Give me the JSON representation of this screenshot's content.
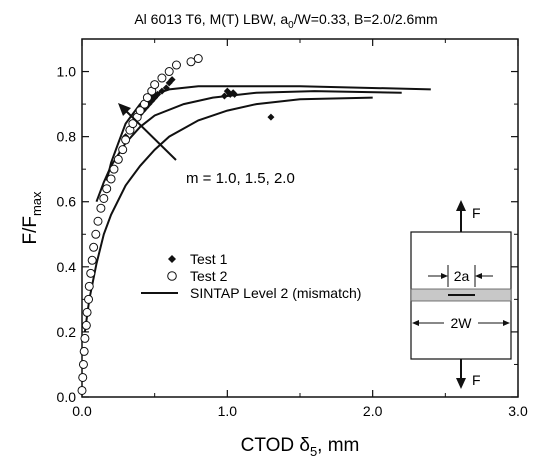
{
  "chart_data": {
    "type": "scatter",
    "title": {
      "pre": "Al 6013 T6, M(T) LBW, a",
      "sub1": "0",
      "mid": "/W=0.33, B=2.0/2.6mm"
    },
    "xlabel": {
      "main": "CTOD δ",
      "sub": "5",
      "suffix": ", mm"
    },
    "ylabel": {
      "main": "F/F",
      "sub": "max"
    },
    "xlim": [
      0,
      3
    ],
    "ylim": [
      0,
      1.1
    ],
    "x_ticks": [
      "0.0",
      "1.0",
      "2.0",
      "3.0"
    ],
    "y_ticks": [
      "0.0",
      "0.2",
      "0.4",
      "0.6",
      "0.8",
      "1.0"
    ],
    "annotation": "m = 1.0, 1.5, 2.0",
    "legend": {
      "test1": "Test 1",
      "test2": "Test 2",
      "sintap": "SINTAP Level 2 (mismatch)"
    },
    "inset": {
      "crack": "2a",
      "width": "2W",
      "force": "F"
    },
    "series": [
      {
        "name": "Test 1",
        "marker": "filled-diamond",
        "points": [
          [
            0.3,
            0.8
          ],
          [
            0.32,
            0.82
          ],
          [
            0.35,
            0.84
          ],
          [
            0.38,
            0.86
          ],
          [
            0.4,
            0.87
          ],
          [
            0.42,
            0.88
          ],
          [
            0.44,
            0.89
          ],
          [
            0.46,
            0.9
          ],
          [
            0.48,
            0.91
          ],
          [
            0.5,
            0.92
          ],
          [
            0.52,
            0.93
          ],
          [
            0.55,
            0.94
          ],
          [
            0.58,
            0.95
          ],
          [
            0.6,
            0.965
          ],
          [
            0.62,
            0.975
          ],
          [
            0.98,
            0.925
          ],
          [
            1.0,
            0.94
          ],
          [
            1.01,
            0.935
          ],
          [
            1.02,
            0.93
          ],
          [
            1.04,
            0.935
          ],
          [
            1.05,
            0.93
          ],
          [
            1.3,
            0.86
          ]
        ]
      },
      {
        "name": "Test 2",
        "marker": "open-circle",
        "points": [
          [
            0.0,
            0.02
          ],
          [
            0.005,
            0.06
          ],
          [
            0.01,
            0.1
          ],
          [
            0.015,
            0.14
          ],
          [
            0.02,
            0.18
          ],
          [
            0.03,
            0.22
          ],
          [
            0.035,
            0.26
          ],
          [
            0.045,
            0.3
          ],
          [
            0.05,
            0.34
          ],
          [
            0.06,
            0.38
          ],
          [
            0.07,
            0.42
          ],
          [
            0.08,
            0.46
          ],
          [
            0.095,
            0.5
          ],
          [
            0.11,
            0.54
          ],
          [
            0.13,
            0.58
          ],
          [
            0.15,
            0.61
          ],
          [
            0.17,
            0.64
          ],
          [
            0.2,
            0.67
          ],
          [
            0.22,
            0.7
          ],
          [
            0.25,
            0.73
          ],
          [
            0.28,
            0.76
          ],
          [
            0.3,
            0.79
          ],
          [
            0.33,
            0.82
          ],
          [
            0.35,
            0.84
          ],
          [
            0.38,
            0.86
          ],
          [
            0.4,
            0.88
          ],
          [
            0.43,
            0.9
          ],
          [
            0.45,
            0.92
          ],
          [
            0.48,
            0.94
          ],
          [
            0.5,
            0.96
          ],
          [
            0.55,
            0.98
          ],
          [
            0.6,
            1.0
          ],
          [
            0.65,
            1.02
          ],
          [
            0.75,
            1.03
          ],
          [
            0.8,
            1.04
          ]
        ]
      }
    ],
    "curves": [
      {
        "name": "SINTAP Level 2 (mismatch), m = 1.0",
        "points": [
          [
            0.17,
            0.665
          ],
          [
            0.2,
            0.72
          ],
          [
            0.25,
            0.78
          ],
          [
            0.3,
            0.84
          ],
          [
            0.4,
            0.9
          ],
          [
            0.5,
            0.93
          ],
          [
            0.6,
            0.945
          ],
          [
            0.8,
            0.955
          ],
          [
            1.0,
            0.955
          ],
          [
            1.5,
            0.955
          ],
          [
            2.4,
            0.945
          ]
        ]
      },
      {
        "name": "SINTAP Level 2 (mismatch), m = 1.5",
        "points": [
          [
            0.1,
            0.6
          ],
          [
            0.15,
            0.66
          ],
          [
            0.2,
            0.71
          ],
          [
            0.3,
            0.78
          ],
          [
            0.4,
            0.83
          ],
          [
            0.5,
            0.865
          ],
          [
            0.7,
            0.9
          ],
          [
            0.9,
            0.92
          ],
          [
            1.2,
            0.935
          ],
          [
            1.6,
            0.94
          ],
          [
            2.2,
            0.935
          ]
        ]
      },
      {
        "name": "SINTAP Level 2 (mismatch), m = 2.0",
        "points": [
          [
            0.02,
            0.2
          ],
          [
            0.05,
            0.3
          ],
          [
            0.1,
            0.41
          ],
          [
            0.15,
            0.5
          ],
          [
            0.2,
            0.56
          ],
          [
            0.3,
            0.65
          ],
          [
            0.4,
            0.71
          ],
          [
            0.5,
            0.76
          ],
          [
            0.6,
            0.8
          ],
          [
            0.8,
            0.85
          ],
          [
            1.0,
            0.88
          ],
          [
            1.2,
            0.9
          ],
          [
            1.5,
            0.915
          ],
          [
            2.0,
            0.92
          ]
        ]
      }
    ]
  }
}
